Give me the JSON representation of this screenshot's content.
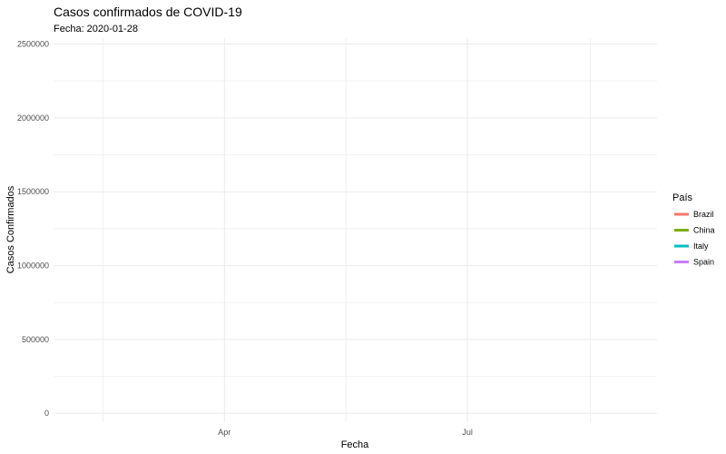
{
  "chart_data": {
    "type": "line",
    "title": "Casos confirmados de COVID-19",
    "subtitle": "Fecha: 2020-01-28",
    "xlabel": "Fecha",
    "ylabel": "Casos Confirmados",
    "ylim": [
      -60000,
      2540000
    ],
    "y_ticks": [
      0,
      500000,
      1000000,
      1500000,
      2000000,
      2500000
    ],
    "y_tick_labels": [
      "0",
      "500000",
      "1000000",
      "1500000",
      "2000000",
      "2500000"
    ],
    "x_range_days": [
      0,
      226
    ],
    "x_ticks": [
      {
        "label": "Apr",
        "day": 64
      },
      {
        "label": "Jul",
        "day": 155
      }
    ],
    "x_minor_ticks": [
      18.5,
      109.5,
      201
    ],
    "grid": true,
    "legend": {
      "title": "País",
      "placement": "right",
      "entries": [
        {
          "name": "Brazil",
          "color": "#F8766D"
        },
        {
          "name": "China",
          "color": "#7CAE00"
        },
        {
          "name": "Italy",
          "color": "#00BFC4"
        },
        {
          "name": "Spain",
          "color": "#C77CFF"
        }
      ]
    },
    "series": [
      {
        "name": "Brazil",
        "values": []
      },
      {
        "name": "China",
        "values": []
      },
      {
        "name": "Italy",
        "values": []
      },
      {
        "name": "Spain",
        "values": []
      }
    ]
  }
}
